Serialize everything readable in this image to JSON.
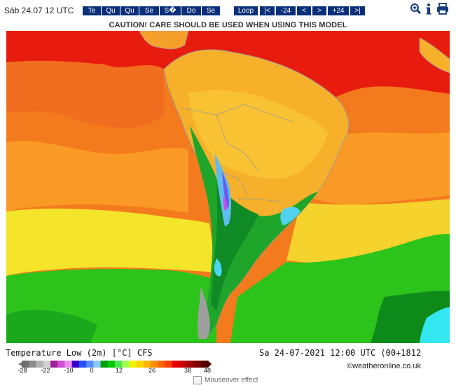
{
  "header": {
    "date_label": "Sáb 24.07 12 UTC",
    "day_buttons": [
      "Te",
      "Qu",
      "Qu",
      "Se",
      "S�",
      "Do",
      "Se"
    ],
    "nav_buttons": [
      "Loop",
      "|<",
      "-24",
      "<",
      ">",
      "+24",
      ">|"
    ],
    "icons": [
      "zoom-in-icon",
      "info-icon",
      "print-icon"
    ]
  },
  "caution": "CAUTION! CARE SHOULD BE USED WHEN USING THIS MODEL",
  "map": {
    "description_colors": {
      "hot": "#e81c0e",
      "warm_orange": "#f47a1e",
      "amber": "#fbae28",
      "yellow": "#f4ee2a",
      "green": "#24c31a",
      "dark_green": "#0d8a1a",
      "cyan": "#33e6f0",
      "blue_cold": "#6a8af0",
      "land_gray": "#9e9e9e"
    }
  },
  "footer": {
    "title": "Temperature Low (2m) [°C] CFS",
    "valid": "Sa 24-07-2021 12:00 UTC (00+1812",
    "credit": "©weatheronline.co.uk",
    "mouseover_label": "Mouseover effect"
  },
  "colorbar": {
    "tick_labels": [
      "-28",
      "-22",
      "-10",
      "0",
      "12",
      "26",
      "38",
      "48"
    ],
    "colors": [
      "#6e6e6e",
      "#8c8c8c",
      "#b4b4b4",
      "#d2d2d2",
      "#a020a0",
      "#d050d0",
      "#f08cf0",
      "#3a00c8",
      "#2850ff",
      "#5a8cff",
      "#8cc8ff",
      "#00a000",
      "#00c800",
      "#50e650",
      "#a0ff50",
      "#f0f000",
      "#ffd700",
      "#ffb400",
      "#ff8c00",
      "#ff6400",
      "#ff3c00",
      "#e60000",
      "#c80000",
      "#a00000",
      "#800000",
      "#500000"
    ]
  }
}
